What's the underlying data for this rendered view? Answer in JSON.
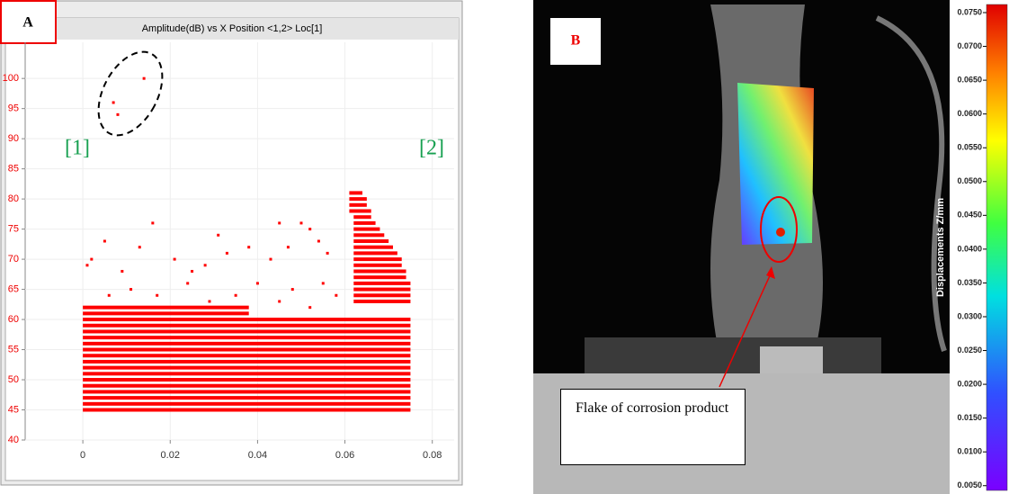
{
  "chart_data": [
    {
      "type": "scatter",
      "panel_label": "A",
      "title": "Amplitude(dB) vs X Position <1,2> Loc[1]",
      "annotations": [
        "[1]",
        "[2]"
      ],
      "color": "#ff0000",
      "points": {
        "x": [
          0.007,
          0.008,
          0.014,
          0.016,
          0.031,
          0.045,
          0.05,
          0.047,
          0.052,
          0.054,
          0.005,
          0.013,
          0.002,
          0.009,
          0.021,
          0.028,
          0.033,
          0.038,
          0.043,
          0.056,
          0.024,
          0.011,
          0.035,
          0.04,
          0.048,
          0.055,
          0.017,
          0.006,
          0.029,
          0.058,
          0.045,
          0.052,
          0.001,
          0.025
        ],
        "y": [
          96,
          94,
          100,
          76,
          74,
          76,
          76,
          72,
          75,
          73,
          73,
          72,
          70,
          68,
          70,
          69,
          71,
          72,
          70,
          71,
          66,
          65,
          64,
          66,
          65,
          66,
          64,
          64,
          63,
          64,
          63,
          62,
          69,
          68
        ]
      },
      "streaks": {
        "y": [
          45,
          46,
          47,
          48,
          49,
          50,
          51,
          52,
          53,
          54,
          55,
          56,
          57,
          58,
          59,
          60,
          61,
          62,
          63,
          64,
          65,
          66,
          67,
          68,
          69,
          70,
          71,
          72,
          73,
          74,
          75,
          76,
          77,
          78,
          79,
          80,
          81
        ],
        "x0": [
          0,
          0,
          0,
          0,
          0,
          0,
          0,
          0,
          0,
          0,
          0,
          0,
          0,
          0,
          0,
          0,
          0,
          0,
          0.062,
          0.062,
          0.062,
          0.062,
          0.062,
          0.062,
          0.062,
          0.062,
          0.062,
          0.062,
          0.062,
          0.062,
          0.062,
          0.062,
          0.062,
          0.061,
          0.061,
          0.061,
          0.061
        ],
        "x1": [
          0.075,
          0.075,
          0.075,
          0.075,
          0.075,
          0.075,
          0.075,
          0.075,
          0.075,
          0.075,
          0.075,
          0.075,
          0.075,
          0.075,
          0.075,
          0.075,
          0.038,
          0.038,
          0.075,
          0.075,
          0.075,
          0.075,
          0.074,
          0.074,
          0.073,
          0.073,
          0.072,
          0.071,
          0.07,
          0.069,
          0.068,
          0.067,
          0.066,
          0.066,
          0.065,
          0.065,
          0.064
        ]
      },
      "xlim": [
        -0.0132,
        0.085
      ],
      "xticks": [
        0,
        0.02,
        0.04,
        0.06,
        0.08
      ],
      "ylim": [
        40,
        106
      ],
      "yticks": [
        40,
        45,
        50,
        55,
        60,
        65,
        70,
        75,
        80,
        85,
        90,
        95,
        100
      ],
      "grid": true
    },
    {
      "type": "image",
      "panel_label": "B",
      "annotation": "Flake of corrosion product",
      "colorbar": {
        "label": "Displacements Z/mm",
        "lim": [
          0.0043,
          0.0762
        ],
        "ticks": [
          {
            "value": 0.005,
            "label": "0.0050"
          },
          {
            "value": 0.01,
            "label": "0.0100"
          },
          {
            "value": 0.015,
            "label": "0.0150"
          },
          {
            "value": 0.02,
            "label": "0.0200"
          },
          {
            "value": 0.025,
            "label": "0.0250"
          },
          {
            "value": 0.03,
            "label": "0.0300"
          },
          {
            "value": 0.035,
            "label": "0.0350"
          },
          {
            "value": 0.04,
            "label": "0.0400"
          },
          {
            "value": 0.045,
            "label": "0.0450"
          },
          {
            "value": 0.05,
            "label": "0.0500"
          },
          {
            "value": 0.055,
            "label": "0.0550"
          },
          {
            "value": 0.06,
            "label": "0.0600"
          },
          {
            "value": 0.065,
            "label": "0.0650"
          },
          {
            "value": 0.07,
            "label": "0.0700"
          },
          {
            "value": 0.075,
            "label": "0.0750"
          }
        ]
      }
    }
  ]
}
